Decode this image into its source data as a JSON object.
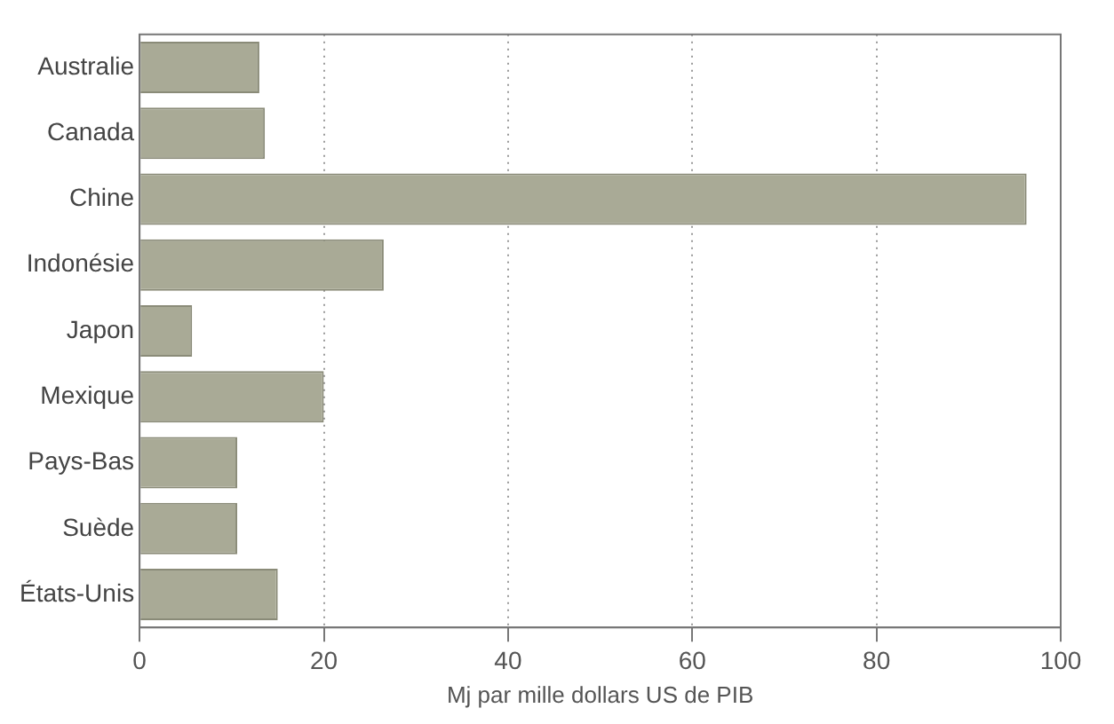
{
  "chart_data": {
    "type": "bar",
    "orientation": "horizontal",
    "xlabel": "Mj par mille dollars US de PIB",
    "categories": [
      "Australie",
      "Canada",
      "Chine",
      "Indonésie",
      "Japon",
      "Mexique",
      "Pays-Bas",
      "Suède",
      "États-Unis"
    ],
    "values": [
      13,
      13.6,
      96.3,
      26.5,
      5.7,
      20,
      10.6,
      10.6,
      15
    ],
    "color": "#a9aa96",
    "xlim": [
      0,
      100
    ],
    "xticks": [
      0,
      20,
      40,
      60,
      80,
      100
    ],
    "grid": "x",
    "legend": false
  }
}
